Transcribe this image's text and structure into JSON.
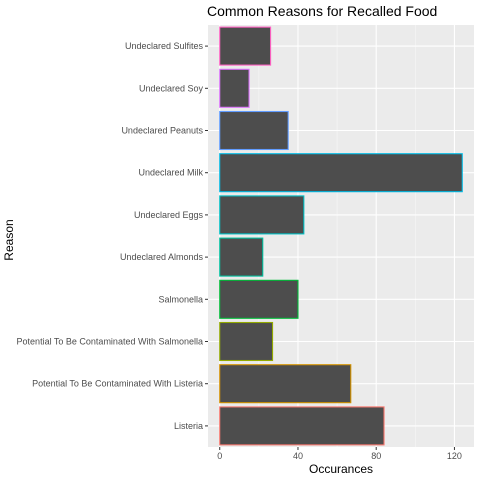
{
  "chart_data": {
    "type": "bar",
    "orientation": "horizontal",
    "title": "Common Reasons for Recalled Food",
    "xlabel": "Occurances",
    "ylabel": "Reason",
    "xlim": [
      -6,
      130
    ],
    "xticks": [
      0,
      40,
      80,
      120
    ],
    "grid": true,
    "legend": "none",
    "panel_background": "#EBEBEB",
    "bar_fill": "#4D4D4D",
    "categories": [
      "Undeclared Sulfites",
      "Undeclared Soy",
      "Undeclared Peanuts",
      "Undeclared Milk",
      "Undeclared Eggs",
      "Undeclared Almonds",
      "Salmonella",
      "Potential To Be Contaminated With Salmonella",
      "Potential To Be Contaminated With Listeria",
      "Listeria"
    ],
    "values": [
      26,
      15,
      35,
      124,
      43,
      22,
      40,
      27,
      67,
      84
    ],
    "outline_colors": [
      "#FF61C3",
      "#DB72FB",
      "#619CFF",
      "#00B9E3",
      "#00BFC4",
      "#00C19F",
      "#00BA38",
      "#93AA00",
      "#D39200",
      "#F8766D"
    ]
  }
}
